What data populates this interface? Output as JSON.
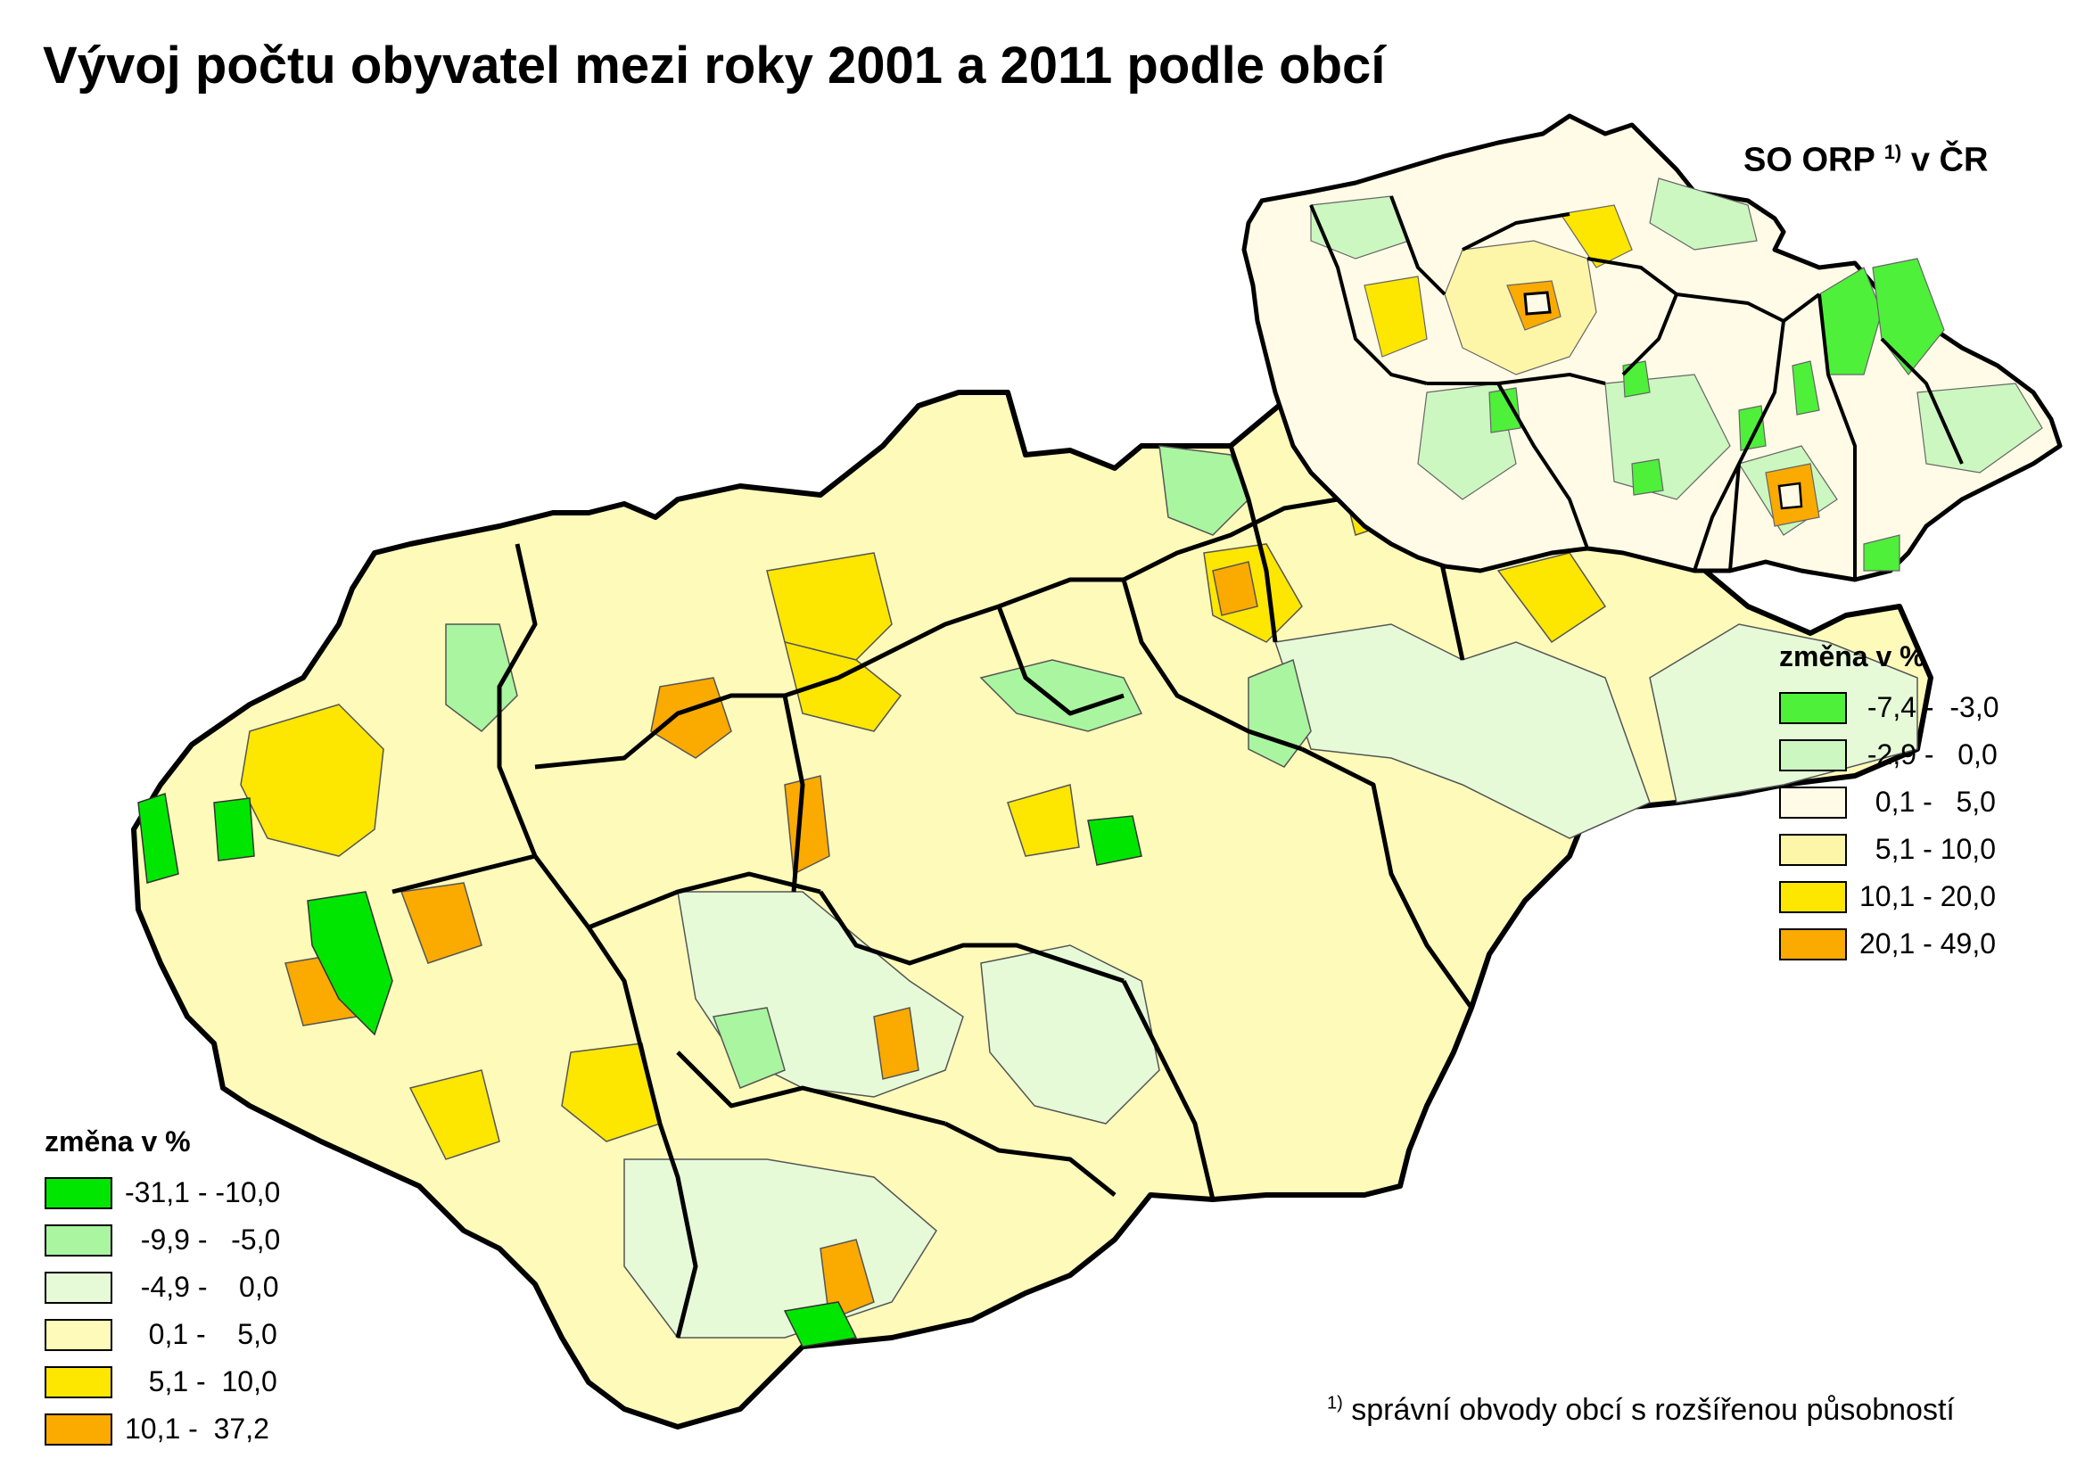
{
  "title": "Vývoj počtu obyvatel mezi roky 2001 a 2011 podle obcí",
  "inset": {
    "title_prefix": "SO ORP",
    "title_sup": "1)",
    "title_suffix": "v ČR"
  },
  "legend_main": {
    "heading": "změna v %",
    "items": [
      {
        "label": "-31,1 - -10,0",
        "color": "#00e600"
      },
      {
        "label": "  -9,9 -   -5,0",
        "color": "#aaf5a0"
      },
      {
        "label": "  -4,9 -    0,0",
        "color": "#e6fad8"
      },
      {
        "label": "   0,1 -    5,0",
        "color": "#fdfaba"
      },
      {
        "label": "   5,1 -  10,0",
        "color": "#fde600"
      },
      {
        "label": "10,1 -  37,2",
        "color": "#fbaa00"
      }
    ]
  },
  "legend_inset": {
    "heading": "změna v %",
    "items": [
      {
        "label": " -7,4 -  -3,0",
        "color": "#4ef03a"
      },
      {
        "label": " -2,9 -   0,0",
        "color": "#ccf7c0"
      },
      {
        "label": "  0,1 -   5,0",
        "color": "#fffbe6"
      },
      {
        "label": "  5,1 - 10,0",
        "color": "#fdf5a8"
      },
      {
        "label": "10,1 - 20,0",
        "color": "#fde600"
      },
      {
        "label": "20,1 - 49,0",
        "color": "#fbaa00"
      }
    ]
  },
  "footnote": {
    "sup": "1)",
    "text": "správní obvody obcí s rozšířenou působností"
  }
}
